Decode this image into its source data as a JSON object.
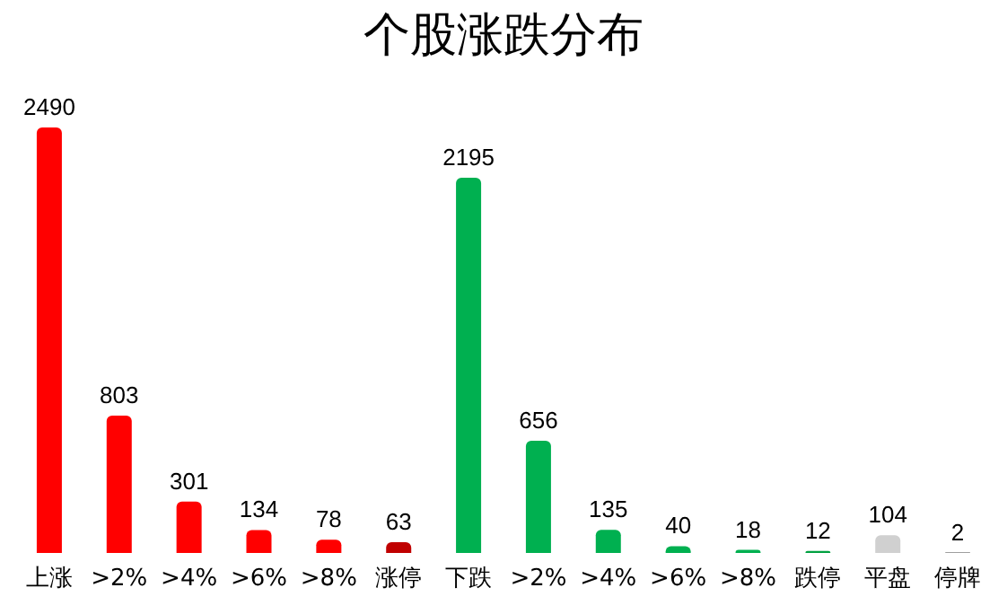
{
  "chart_data": {
    "type": "bar",
    "title": "个股涨跌分布",
    "categories": [
      "上涨",
      ">2%",
      ">4%",
      ">6%",
      ">8%",
      "涨停",
      "下跌",
      ">2%",
      ">4%",
      ">6%",
      ">8%",
      "跌停",
      "平盘",
      "停牌"
    ],
    "values": [
      2490,
      803,
      301,
      134,
      78,
      63,
      2195,
      656,
      135,
      40,
      18,
      12,
      104,
      2
    ],
    "colors": [
      "#ff0000",
      "#ff0000",
      "#ff0000",
      "#ff0000",
      "#ff0000",
      "#c00000",
      "#00b050",
      "#00b050",
      "#00b050",
      "#00b050",
      "#00b050",
      "#00a040",
      "#d0d0d0",
      "#404040"
    ],
    "data_labels": true
  }
}
